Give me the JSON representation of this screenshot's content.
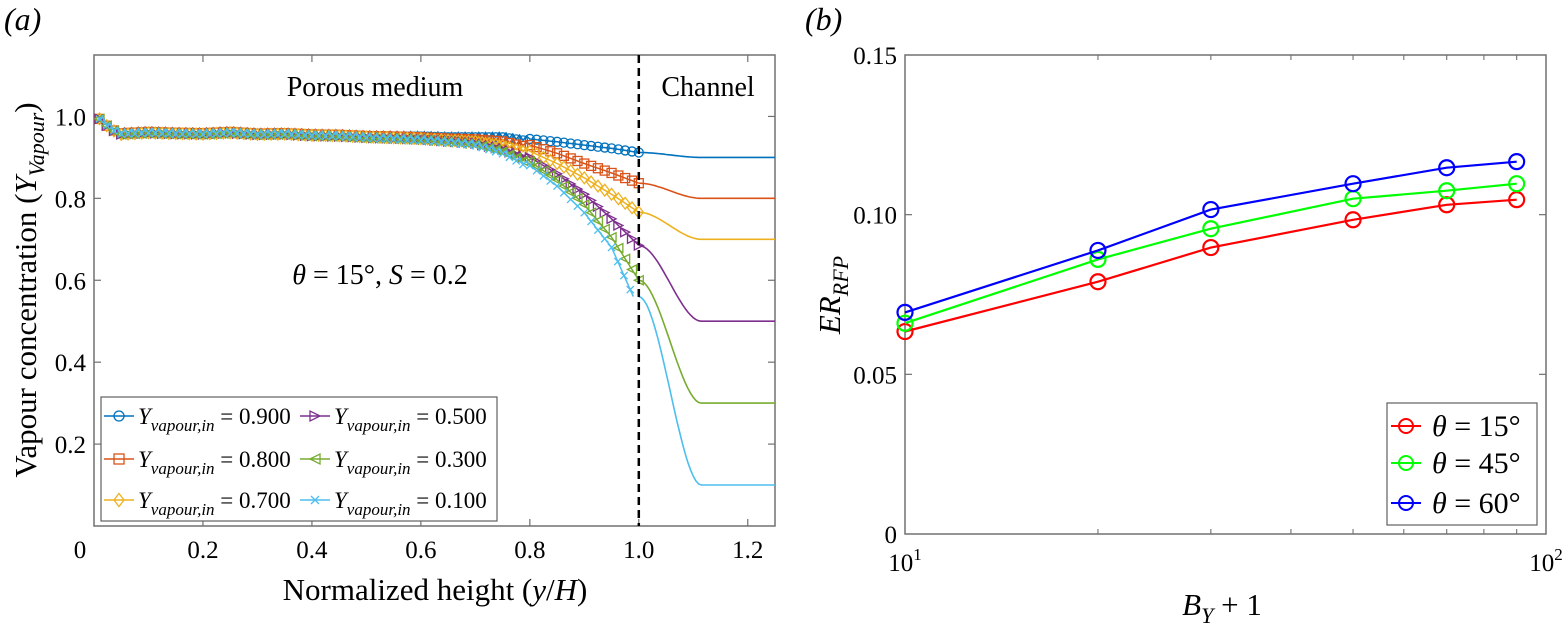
{
  "panels": {
    "a": {
      "label": "(a)"
    },
    "b": {
      "label": "(b)"
    }
  },
  "chart_data": [
    {
      "type": "line",
      "panel": "a",
      "xlabel": "Normalized height (y/H)",
      "xlabel_parts": {
        "pre": "Normalized height (",
        "var1": "y",
        "sep": "/",
        "var2": "H",
        "post": ")"
      },
      "ylabel": "Vapour concentration (Y_Vapour)",
      "ylabel_parts": {
        "pre": "Vapour concentration (",
        "var": "Y",
        "sub": "Vapour",
        "post": ")"
      },
      "xlim": [
        0,
        1.25
      ],
      "ylim": [
        0,
        1.15
      ],
      "xticks": [
        0,
        0.2,
        0.4,
        0.6,
        0.8,
        1.0,
        1.2
      ],
      "xtick_labels": [
        "0",
        "0.2",
        "0.4",
        "0.6",
        "0.8",
        "1.0",
        "1.2"
      ],
      "yticks": [
        0.2,
        0.4,
        0.6,
        0.8,
        1.0
      ],
      "ytick_labels": [
        "0.2",
        "0.4",
        "0.6",
        "0.8",
        "1.0"
      ],
      "grid": false,
      "annotations": {
        "region_left": "Porous medium",
        "region_right": "Channel",
        "interface_x": 1.0,
        "condition": {
          "theta_sym": "θ",
          "theta_val": " = 15°, ",
          "s_sym": "S",
          "s_val": " = 0.2"
        }
      },
      "legend": {
        "placement": "bottom-left",
        "columns": 2
      },
      "series": [
        {
          "name": "Y_vapour,in = 0.900",
          "legend_var": "Y",
          "legend_sub": "vapour,in",
          "legend_val": " = 0.900",
          "inlet": 0.9,
          "color": "#0072BD",
          "marker": "circle",
          "porous": [
            [
              0.01,
              1.0
            ],
            [
              0.03,
              0.975
            ],
            [
              0.05,
              0.965
            ],
            [
              0.1,
              0.968
            ],
            [
              0.15,
              0.966
            ],
            [
              0.2,
              0.965
            ],
            [
              0.25,
              0.968
            ],
            [
              0.3,
              0.964
            ],
            [
              0.35,
              0.965
            ],
            [
              0.4,
              0.962
            ],
            [
              0.45,
              0.961
            ],
            [
              0.5,
              0.958
            ],
            [
              0.55,
              0.957
            ],
            [
              0.6,
              0.957
            ],
            [
              0.65,
              0.955
            ],
            [
              0.7,
              0.955
            ],
            [
              0.75,
              0.955
            ],
            [
              0.8,
              0.945
            ],
            [
              0.85,
              0.938
            ],
            [
              0.9,
              0.93
            ],
            [
              0.95,
              0.922
            ],
            [
              1.0,
              0.912
            ]
          ],
          "channel_plateau": 0.9
        },
        {
          "name": "Y_vapour,in = 0.800",
          "legend_var": "Y",
          "legend_sub": "vapour,in",
          "legend_val": " = 0.800",
          "inlet": 0.8,
          "color": "#D95319",
          "marker": "square",
          "porous": [
            [
              0.01,
              1.0
            ],
            [
              0.03,
              0.975
            ],
            [
              0.05,
              0.965
            ],
            [
              0.1,
              0.968
            ],
            [
              0.15,
              0.966
            ],
            [
              0.2,
              0.965
            ],
            [
              0.25,
              0.968
            ],
            [
              0.3,
              0.964
            ],
            [
              0.35,
              0.965
            ],
            [
              0.4,
              0.962
            ],
            [
              0.45,
              0.961
            ],
            [
              0.5,
              0.958
            ],
            [
              0.55,
              0.957
            ],
            [
              0.6,
              0.955
            ],
            [
              0.65,
              0.952
            ],
            [
              0.7,
              0.95
            ],
            [
              0.75,
              0.945
            ],
            [
              0.8,
              0.93
            ],
            [
              0.85,
              0.91
            ],
            [
              0.9,
              0.885
            ],
            [
              0.95,
              0.862
            ],
            [
              1.0,
              0.837
            ]
          ],
          "channel_plateau": 0.8
        },
        {
          "name": "Y_vapour,in = 0.700",
          "legend_var": "Y",
          "legend_sub": "vapour,in",
          "legend_val": " = 0.700",
          "inlet": 0.7,
          "color": "#EDB120",
          "marker": "diamond",
          "porous": [
            [
              0.01,
              1.0
            ],
            [
              0.03,
              0.975
            ],
            [
              0.05,
              0.962
            ],
            [
              0.1,
              0.966
            ],
            [
              0.15,
              0.964
            ],
            [
              0.2,
              0.963
            ],
            [
              0.25,
              0.966
            ],
            [
              0.3,
              0.962
            ],
            [
              0.35,
              0.963
            ],
            [
              0.4,
              0.96
            ],
            [
              0.45,
              0.959
            ],
            [
              0.5,
              0.956
            ],
            [
              0.55,
              0.954
            ],
            [
              0.6,
              0.952
            ],
            [
              0.65,
              0.948
            ],
            [
              0.7,
              0.945
            ],
            [
              0.75,
              0.935
            ],
            [
              0.8,
              0.915
            ],
            [
              0.85,
              0.885
            ],
            [
              0.9,
              0.85
            ],
            [
              0.95,
              0.81
            ],
            [
              1.0,
              0.766
            ]
          ],
          "channel_plateau": 0.7
        },
        {
          "name": "Y_vapour,in = 0.500",
          "legend_var": "Y",
          "legend_sub": "vapour,in",
          "legend_val": " = 0.500",
          "inlet": 0.5,
          "color": "#7E2F8E",
          "marker": "triangle-right",
          "porous": [
            [
              0.01,
              1.0
            ],
            [
              0.03,
              0.975
            ],
            [
              0.05,
              0.962
            ],
            [
              0.1,
              0.965
            ],
            [
              0.15,
              0.963
            ],
            [
              0.2,
              0.962
            ],
            [
              0.25,
              0.965
            ],
            [
              0.3,
              0.961
            ],
            [
              0.35,
              0.962
            ],
            [
              0.4,
              0.958
            ],
            [
              0.45,
              0.957
            ],
            [
              0.5,
              0.954
            ],
            [
              0.55,
              0.952
            ],
            [
              0.6,
              0.95
            ],
            [
              0.65,
              0.945
            ],
            [
              0.7,
              0.94
            ],
            [
              0.75,
              0.925
            ],
            [
              0.8,
              0.9
            ],
            [
              0.85,
              0.86
            ],
            [
              0.9,
              0.81
            ],
            [
              0.95,
              0.75
            ],
            [
              1.0,
              0.685
            ]
          ],
          "channel_plateau": 0.5
        },
        {
          "name": "Y_vapour,in = 0.300",
          "legend_var": "Y",
          "legend_sub": "vapour,in",
          "legend_val": " = 0.300",
          "inlet": 0.3,
          "color": "#77AC30",
          "marker": "triangle-left",
          "porous": [
            [
              0.01,
              1.0
            ],
            [
              0.03,
              0.975
            ],
            [
              0.05,
              0.962
            ],
            [
              0.1,
              0.965
            ],
            [
              0.15,
              0.963
            ],
            [
              0.2,
              0.962
            ],
            [
              0.25,
              0.965
            ],
            [
              0.3,
              0.961
            ],
            [
              0.35,
              0.962
            ],
            [
              0.4,
              0.958
            ],
            [
              0.45,
              0.957
            ],
            [
              0.5,
              0.953
            ],
            [
              0.55,
              0.951
            ],
            [
              0.6,
              0.948
            ],
            [
              0.65,
              0.943
            ],
            [
              0.7,
              0.937
            ],
            [
              0.75,
              0.92
            ],
            [
              0.8,
              0.89
            ],
            [
              0.85,
              0.845
            ],
            [
              0.9,
              0.785
            ],
            [
              0.95,
              0.705
            ],
            [
              1.0,
              0.6
            ]
          ],
          "channel_plateau": 0.3
        },
        {
          "name": "Y_vapour,in = 0.100",
          "legend_var": "Y",
          "legend_sub": "vapour,in",
          "legend_val": " = 0.100",
          "inlet": 0.1,
          "color": "#4DBEEE",
          "marker": "x",
          "porous": [
            [
              0.01,
              1.0
            ],
            [
              0.03,
              0.975
            ],
            [
              0.05,
              0.963
            ],
            [
              0.1,
              0.965
            ],
            [
              0.15,
              0.963
            ],
            [
              0.2,
              0.962
            ],
            [
              0.25,
              0.965
            ],
            [
              0.3,
              0.961
            ],
            [
              0.35,
              0.962
            ],
            [
              0.4,
              0.958
            ],
            [
              0.45,
              0.957
            ],
            [
              0.5,
              0.953
            ],
            [
              0.55,
              0.95
            ],
            [
              0.6,
              0.947
            ],
            [
              0.65,
              0.942
            ],
            [
              0.7,
              0.935
            ],
            [
              0.75,
              0.915
            ],
            [
              0.8,
              0.88
            ],
            [
              0.85,
              0.83
            ],
            [
              0.9,
              0.765
            ],
            [
              0.95,
              0.68
            ],
            [
              0.99,
              0.56
            ]
          ],
          "channel_plateau": 0.1
        }
      ]
    },
    {
      "type": "line",
      "panel": "b",
      "xscale": "log",
      "xlabel": "B_Y + 1",
      "xlabel_parts": {
        "var": "B",
        "sub": "Y",
        "post": " + 1"
      },
      "ylabel": "ER_RFP",
      "ylabel_parts": {
        "var": "ER",
        "sub": "RFP"
      },
      "xlim": [
        10,
        100
      ],
      "ylim": [
        0,
        0.15
      ],
      "xticks": [
        10,
        100
      ],
      "xtick_labels": [
        {
          "base": "10",
          "exp": "1"
        },
        {
          "base": "10",
          "exp": "2"
        }
      ],
      "xminor_ticks": [
        20,
        30,
        40,
        50,
        60,
        70,
        80,
        90
      ],
      "yticks": [
        0,
        0.05,
        0.1,
        0.15
      ],
      "ytick_labels": [
        "0",
        "0.05",
        "0.10",
        "0.15"
      ],
      "grid": false,
      "legend": {
        "placement": "bottom-right",
        "columns": 1
      },
      "x": [
        10,
        20,
        30,
        50,
        70,
        90
      ],
      "series": [
        {
          "name": "θ = 15°",
          "legend_sym": "θ",
          "legend_val": " = 15°",
          "color": "#FF0000",
          "marker": "circle",
          "values": [
            0.0634,
            0.079,
            0.0897,
            0.0984,
            0.1031,
            0.1047
          ]
        },
        {
          "name": "θ = 45°",
          "legend_sym": "θ",
          "legend_val": " = 45°",
          "color": "#00FF00",
          "marker": "circle",
          "values": [
            0.066,
            0.086,
            0.0956,
            0.105,
            0.1075,
            0.1097
          ]
        },
        {
          "name": "θ = 60°",
          "legend_sym": "θ",
          "legend_val": " = 60°",
          "color": "#0000FF",
          "marker": "circle",
          "values": [
            0.0694,
            0.0888,
            0.1016,
            0.1097,
            0.1147,
            0.1166
          ]
        }
      ]
    }
  ]
}
